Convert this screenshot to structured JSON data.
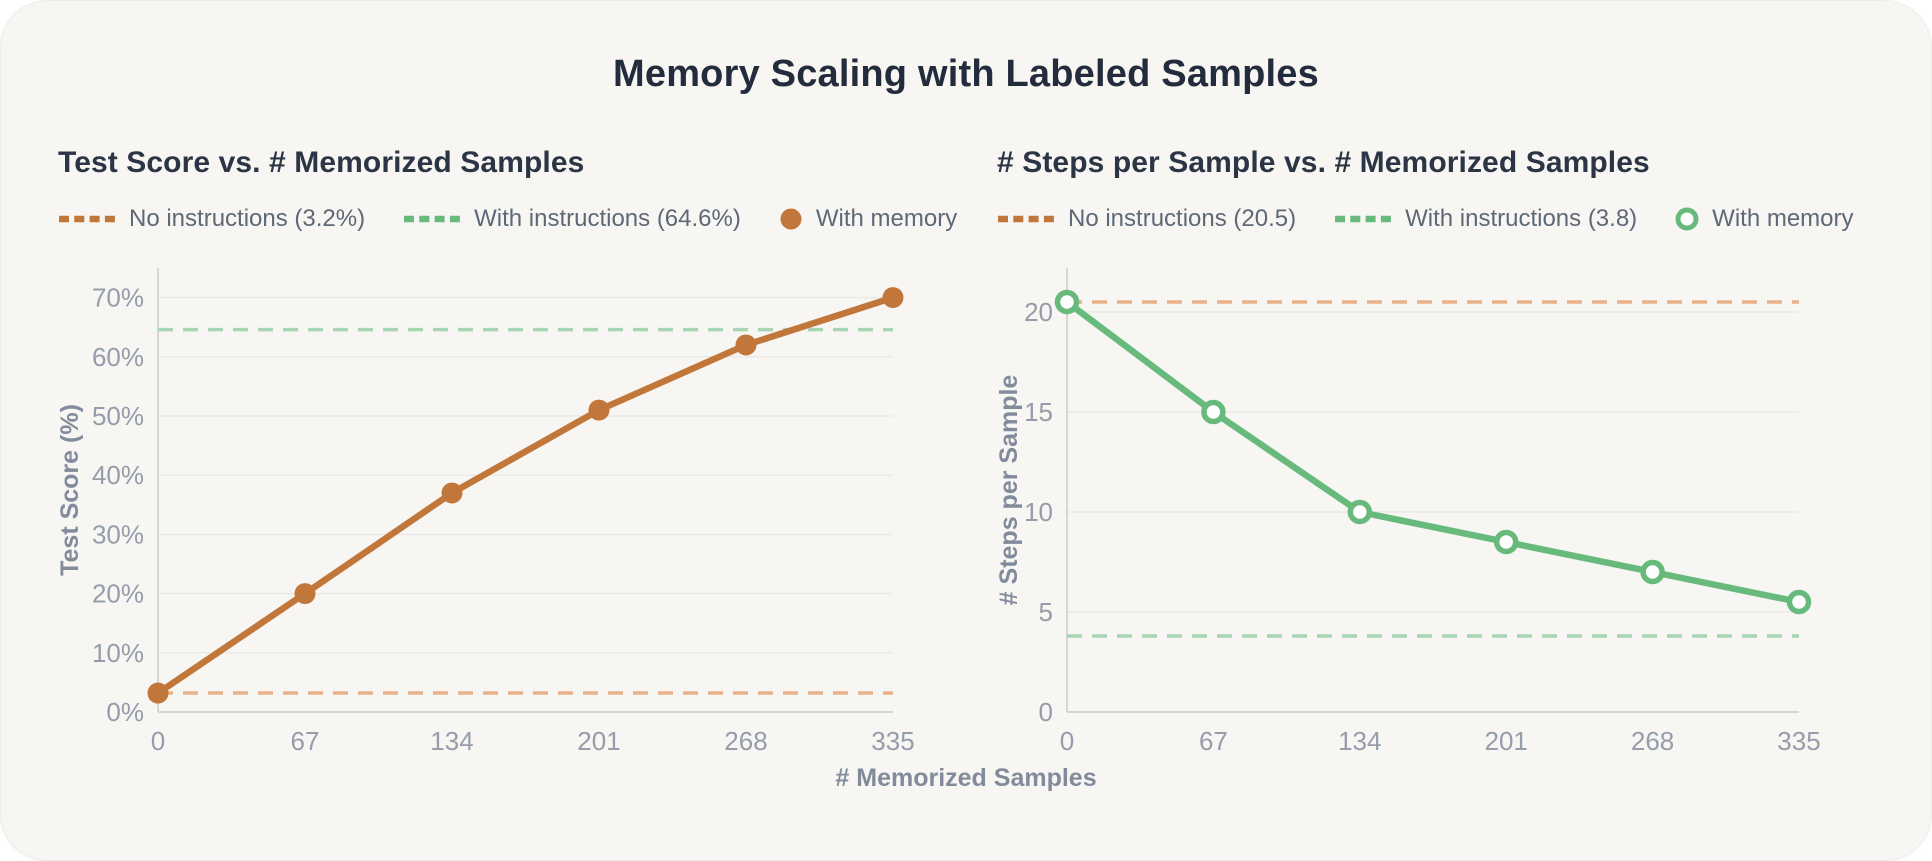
{
  "page": {
    "title": "Memory Scaling with Labeled Samples",
    "shared_x_label": "# Memorized Samples"
  },
  "colors": {
    "orange": "#c2773a",
    "orange_faded": "#e7b28a",
    "green": "#68ba7c",
    "green_faded": "#a8d6b4",
    "grid": "#eceae6",
    "axis": "#d7d5d0",
    "tick_label": "#959caa",
    "axis_title": "#828b9b",
    "legend_text": "#5e6877",
    "title": "#232c3c",
    "subtitle": "#2c3545",
    "marker_fill_open": "#ffffff",
    "card_bg": "#f7f6f3",
    "page_bg": "#ffffff"
  },
  "chart_data": [
    {
      "type": "line",
      "title": "Test Score vs. # Memorized Samples",
      "x": [
        0,
        67,
        134,
        201,
        268,
        335
      ],
      "xlabel": "# Memorized Samples",
      "ylabel": "Test Score (%)",
      "yticks": [
        0,
        10,
        20,
        30,
        40,
        50,
        60,
        70
      ],
      "ytick_suffix": "%",
      "ylim": [
        0,
        75
      ],
      "grid": true,
      "legend_position": "top",
      "series": [
        {
          "name": "With memory",
          "values": [
            3.2,
            20,
            37,
            51,
            62,
            70
          ],
          "color_key": "orange",
          "marker": "filled-circle",
          "line_style": "solid"
        }
      ],
      "reference_lines": [
        {
          "name": "No instructions",
          "value": 3.2,
          "color_key": "orange_faded",
          "line_style": "dashed"
        },
        {
          "name": "With instructions",
          "value": 64.6,
          "color_key": "green_faded",
          "line_style": "dashed"
        }
      ],
      "legend": [
        {
          "label": "No instructions (3.2%)",
          "swatch": "dash",
          "color_key": "orange"
        },
        {
          "label": "With instructions (64.6%)",
          "swatch": "dash",
          "color_key": "green"
        },
        {
          "label": "With memory",
          "swatch": "dot-filled",
          "color_key": "orange"
        }
      ]
    },
    {
      "type": "line",
      "title": "# Steps per Sample vs. # Memorized Samples",
      "x": [
        0,
        67,
        134,
        201,
        268,
        335
      ],
      "xlabel": "# Memorized Samples",
      "ylabel": "# Steps per Sample",
      "yticks": [
        0,
        5,
        10,
        15,
        20
      ],
      "ytick_suffix": "",
      "ylim": [
        0,
        22.2
      ],
      "grid": true,
      "legend_position": "top",
      "series": [
        {
          "name": "With memory",
          "values": [
            20.5,
            15,
            10,
            8.5,
            7,
            5.5
          ],
          "color_key": "green",
          "marker": "open-circle",
          "line_style": "solid"
        }
      ],
      "reference_lines": [
        {
          "name": "No instructions",
          "value": 20.5,
          "color_key": "orange_faded",
          "line_style": "dashed"
        },
        {
          "name": "With instructions",
          "value": 3.8,
          "color_key": "green_faded",
          "line_style": "dashed"
        }
      ],
      "legend": [
        {
          "label": "No instructions (20.5)",
          "swatch": "dash",
          "color_key": "orange"
        },
        {
          "label": "With instructions (3.8)",
          "swatch": "dash",
          "color_key": "green"
        },
        {
          "label": "With memory",
          "swatch": "dot-open",
          "color_key": "green"
        }
      ]
    }
  ]
}
